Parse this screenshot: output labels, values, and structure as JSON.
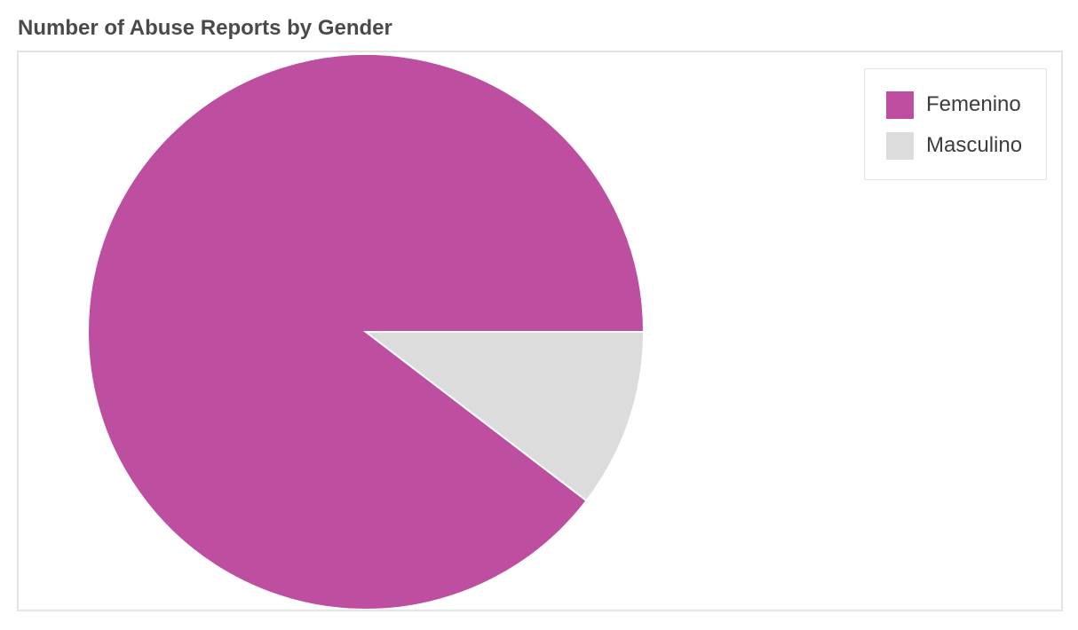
{
  "chart_data": {
    "type": "pie",
    "title": "Number of Abuse Reports by Gender",
    "legend_position": "top-right",
    "categories": [
      "Femenino",
      "Masculino"
    ],
    "values": [
      89.6,
      10.4
    ],
    "colors": [
      "#bd4ea0",
      "#dcdcdc"
    ]
  }
}
